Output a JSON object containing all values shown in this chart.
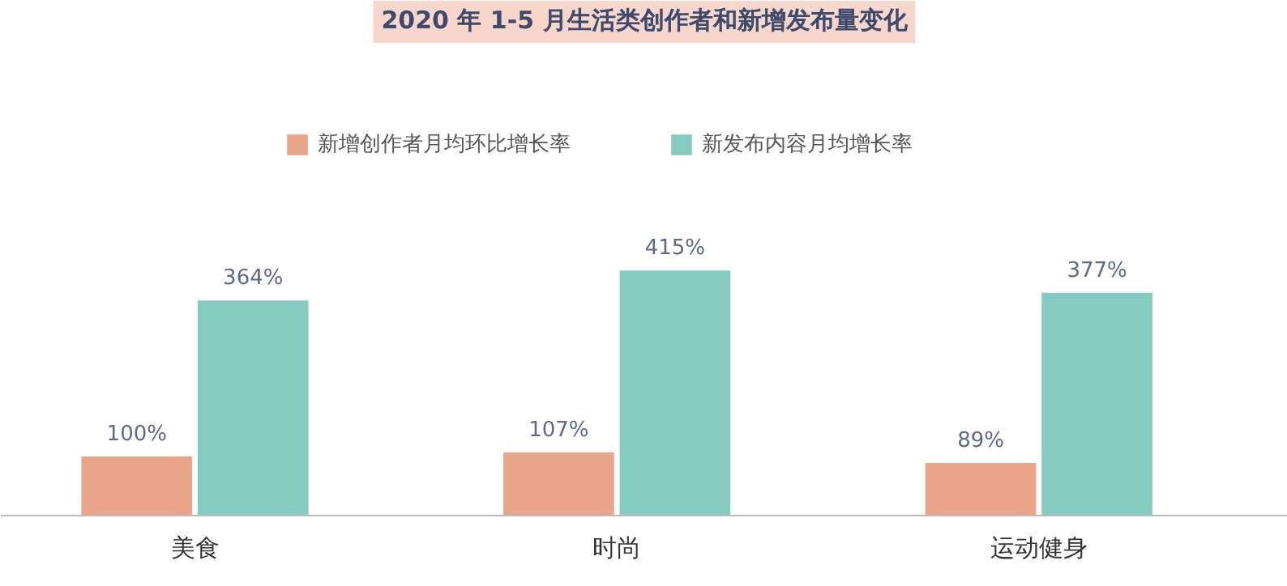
{
  "chart_data": {
    "type": "bar",
    "title": "2020 年 1-5 月生活类创作者和新增发布量变化",
    "categories": [
      "美食",
      "时尚",
      "运动健身"
    ],
    "series": [
      {
        "name": "新增创作者月均环比增长率",
        "color": "#e8a58a",
        "values": [
          100,
          107,
          89
        ],
        "value_labels": [
          "100%",
          "107%",
          "89%"
        ]
      },
      {
        "name": "新发布内容月均增长率",
        "color": "#86cbc0",
        "values": [
          364,
          415,
          377
        ],
        "value_labels": [
          "364%",
          "415%",
          "377%"
        ]
      }
    ],
    "legend": "top"
  }
}
